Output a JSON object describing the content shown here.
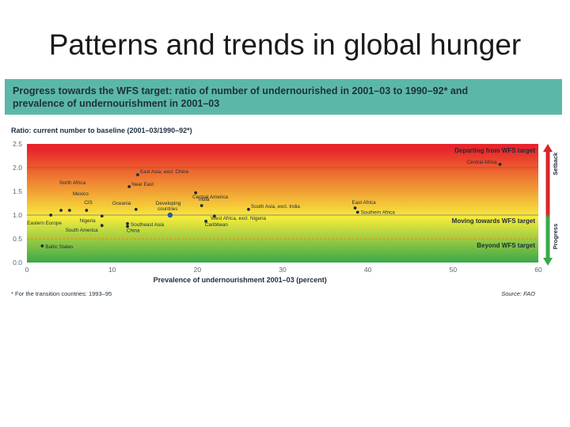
{
  "slide": {
    "title": "Patterns and trends in global hunger"
  },
  "figure": {
    "header_line1": "Progress towards the WFS target: ratio of number of undernourished in 2001–03 to 1990–92* and",
    "header_line2": "prevalence of undernourishment in 2001–03",
    "footnote": "* For the transition countries: 1993–95",
    "source": "Source: FAO",
    "zones": {
      "setback_label": "Departing from WFS target",
      "moving_label": "Moving towards WFS target",
      "beyond_label": "Beyond WFS target",
      "arrow_setback": "Setback",
      "arrow_progress": "Progress",
      "colors": {
        "red": "#e8242a",
        "yellow": "#f7ec3b",
        "green": "#3aa84a",
        "arrow_red": "#d9252b",
        "arrow_green": "#3aa84a",
        "point": "#1e2a38",
        "highlight_point": "#1f5aa6",
        "target_dash": "#d4a017"
      }
    }
  },
  "chart_data": {
    "type": "scatter",
    "title": "",
    "xlabel": "Prevalence of undernourishment 2001–03 (percent)",
    "ylabel": "Ratio: current number to baseline (2001–03/1990–92*)",
    "xlim": [
      0,
      60
    ],
    "ylim": [
      0,
      2.5
    ],
    "xticks": [
      "0",
      "10",
      "20",
      "30",
      "40",
      "50",
      "60"
    ],
    "yticks": [
      "0.0",
      "0.5",
      "1.0",
      "1.5",
      "2.0",
      "2.5"
    ],
    "grid": false,
    "points": [
      {
        "label": "Central Africa",
        "x": 55.5,
        "y": 2.07
      },
      {
        "label": "East Asia, excl. China",
        "x": 13,
        "y": 1.85
      },
      {
        "label": "Near East",
        "x": 12,
        "y": 1.6
      },
      {
        "label": "Central America",
        "x": 19.8,
        "y": 1.47
      },
      {
        "label": "India",
        "x": 20.5,
        "y": 1.2
      },
      {
        "label": "South Asia, excl. India",
        "x": 26,
        "y": 1.12
      },
      {
        "label": "East Africa",
        "x": 38.5,
        "y": 1.15
      },
      {
        "label": "Southern Africa",
        "x": 38.8,
        "y": 1.06
      },
      {
        "label": "North Africa",
        "x": 4,
        "y": 1.1
      },
      {
        "label": "Mexico",
        "x": 5,
        "y": 1.1
      },
      {
        "label": "CIS",
        "x": 7,
        "y": 1.1
      },
      {
        "label": "Oceania",
        "x": 12.8,
        "y": 1.12
      },
      {
        "label": "Eastern Europe",
        "x": 2.8,
        "y": 1.0
      },
      {
        "label": "Nigeria",
        "x": 8.8,
        "y": 0.98
      },
      {
        "label": "Developing countries",
        "x": 16.8,
        "y": 1.0,
        "highlight": true
      },
      {
        "label": "Southeast Asia",
        "x": 11.8,
        "y": 0.82
      },
      {
        "label": "China",
        "x": 11.8,
        "y": 0.76
      },
      {
        "label": "South America",
        "x": 8.8,
        "y": 0.78
      },
      {
        "label": "West Africa, excl. Nigeria",
        "x": 21,
        "y": 0.87
      },
      {
        "label": "Caribbean",
        "x": 22,
        "y": 0.98
      },
      {
        "label": "Baltic States",
        "x": 1.8,
        "y": 0.35
      }
    ],
    "reference_lines": [
      {
        "y": 1.0,
        "label": "Moving towards WFS target"
      },
      {
        "y": 0.5,
        "label": "Beyond WFS target"
      }
    ]
  }
}
